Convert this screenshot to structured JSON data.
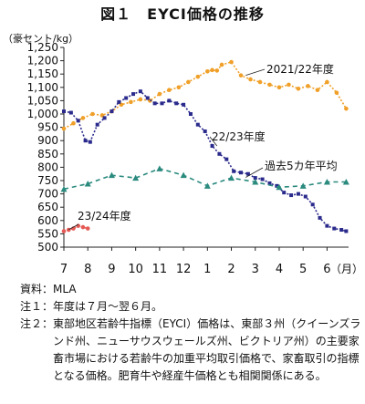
{
  "title": "図１　EYCI価格の推移",
  "chart_data": {
    "type": "line",
    "unit_label": "（豪セント/kg）",
    "xlabel": "（月）",
    "categories": [
      "7",
      "8",
      "9",
      "10",
      "11",
      "12",
      "1",
      "2",
      "3",
      "4",
      "5",
      "6"
    ],
    "ylim": [
      500,
      1250
    ],
    "yticks": [
      500,
      550,
      600,
      650,
      700,
      750,
      800,
      850,
      900,
      950,
      1000,
      1050,
      1100,
      1150,
      1200,
      1250
    ],
    "series": [
      {
        "name": "2021/22年度",
        "color": "#f0a028",
        "marker": "circle",
        "x": [
          0,
          0.4,
          0.8,
          1.2,
          1.6,
          2.0,
          2.4,
          2.8,
          3.2,
          3.6,
          4.0,
          4.4,
          4.8,
          5.2,
          5.6,
          6.0,
          6.2,
          6.4,
          6.6,
          7.0,
          7.4,
          7.8,
          8.2,
          8.6,
          9.0,
          9.4,
          9.8,
          10.2,
          10.6,
          11.0,
          11.4,
          11.8
        ],
        "values": [
          945,
          965,
          985,
          1000,
          995,
          1010,
          1035,
          1045,
          1055,
          1050,
          1075,
          1090,
          1100,
          1120,
          1140,
          1160,
          1165,
          1163,
          1185,
          1195,
          1145,
          1130,
          1120,
          1110,
          1100,
          1110,
          1095,
          1105,
          1090,
          1120,
          1080,
          1020
        ]
      },
      {
        "name": "22/23年度",
        "color": "#2a2a8c",
        "marker": "square",
        "x": [
          0,
          0.3,
          0.6,
          0.9,
          1.1,
          1.4,
          1.7,
          2.0,
          2.3,
          2.6,
          2.9,
          3.2,
          3.5,
          3.8,
          4.1,
          4.4,
          4.7,
          5.0,
          5.3,
          5.6,
          5.9,
          6.2,
          6.5,
          6.8,
          7.1,
          7.4,
          7.7,
          8.0,
          8.3,
          8.6,
          8.9,
          9.2,
          9.5,
          9.8,
          10.1,
          10.4,
          10.7,
          11.0,
          11.3,
          11.6,
          11.8
        ],
        "values": [
          1010,
          1005,
          975,
          900,
          895,
          960,
          985,
          1010,
          1045,
          1060,
          1075,
          1085,
          1060,
          1040,
          1040,
          1050,
          1040,
          1035,
          1000,
          960,
          935,
          880,
          850,
          830,
          785,
          780,
          775,
          760,
          755,
          740,
          730,
          705,
          695,
          700,
          690,
          660,
          610,
          580,
          570,
          565,
          560
        ]
      },
      {
        "name": "過去5カ年平均",
        "color": "#2a8a7e",
        "marker": "triangle",
        "x": [
          0,
          1,
          2,
          3,
          4,
          5,
          6,
          7,
          8,
          9,
          10,
          11,
          11.8
        ],
        "values": [
          718,
          738,
          770,
          760,
          795,
          770,
          730,
          760,
          745,
          725,
          730,
          745,
          745
        ]
      },
      {
        "name": "23/24年度",
        "color": "#e45a55",
        "marker": "circle",
        "x": [
          0,
          0.2,
          0.4,
          0.6,
          0.8,
          1.0
        ],
        "values": [
          560,
          565,
          570,
          580,
          575,
          570
        ]
      }
    ]
  },
  "notes": [
    {
      "key": "資料：",
      "text": "MLA"
    },
    {
      "key": "注１：",
      "text": "年度は７月～翌６月。"
    },
    {
      "key": "注２：",
      "text": "東部地区若齢牛指標（EYCI）価格は、東部３州（クイーンズランド州、ニューサウスウェールズ州、ビクトリア州）の主要家畜市場における若齢牛の加重平均取引価格で、家畜取引の指標となる価格。肥育牛や経産牛価格とも相関関係にある。"
    }
  ]
}
